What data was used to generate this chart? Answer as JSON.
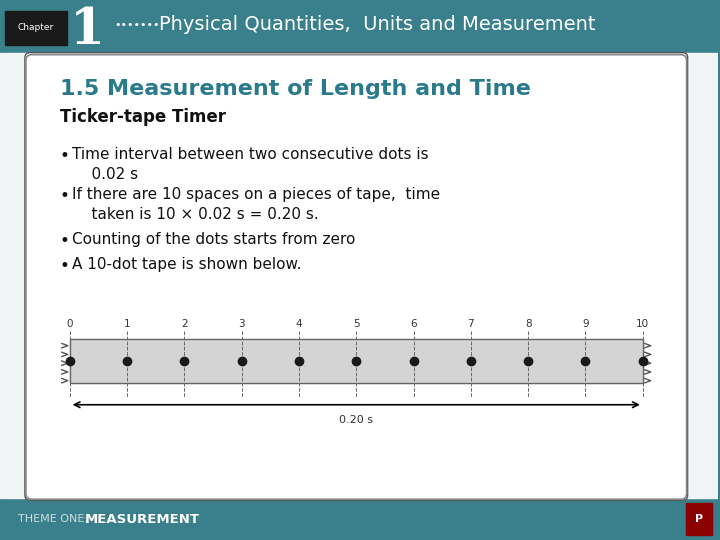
{
  "header_bg": "#3a7f8c",
  "header_text_chapter": "Chapter",
  "header_text_number": "1",
  "header_dots": "•••••••",
  "header_title": "Physical Quantities,  Units and Measurement",
  "content_bg": "#f0f4f5",
  "white_box_bg": "#ffffff",
  "section_title": "1.5 Measurement of Length and Time",
  "section_title_color": "#2a7a8c",
  "subtitle": "Ticker-tape Timer",
  "bullets": [
    "Time interval between two consecutive dots is\n    0.02 s",
    "If there are 10 spaces on a pieces of tape,  time\n    taken is 10 × 0.02 s = 0.20 s.",
    "Counting of the dots starts from zero",
    "A 10-dot tape is shown below."
  ],
  "footer_bg": "#3a7f8c",
  "footer_left": "THEME ONE:",
  "footer_right": "MEASUREMENT",
  "tape_labels": [
    "0",
    "1",
    "2",
    "3",
    "4",
    "5",
    "6",
    "7",
    "8",
    "9",
    "10"
  ],
  "tape_dot_color": "#1a1a1a",
  "tape_bg": "#d4d4d4",
  "arrow_label": "0.20 s"
}
